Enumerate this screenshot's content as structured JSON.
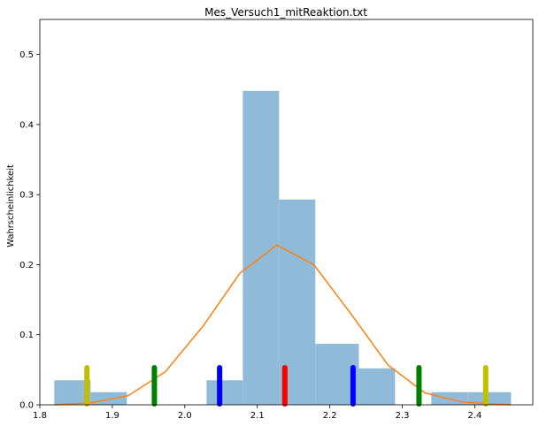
{
  "chart_data": {
    "type": "bar",
    "title": "Mes_Versuch1_mitReaktion.txt",
    "xlabel": "",
    "ylabel": "Wahrscheinlichkeit",
    "xlim": [
      1.8,
      2.48
    ],
    "ylim": [
      0,
      0.55
    ],
    "xticks": [
      1.8,
      1.9,
      2.0,
      2.1,
      2.2,
      2.3,
      2.4
    ],
    "xtick_labels": [
      "1.8",
      "1.9",
      "2.0",
      "2.1",
      "2.2",
      "2.3",
      "2.4"
    ],
    "yticks": [
      0.0,
      0.1,
      0.2,
      0.3,
      0.4,
      0.5
    ],
    "ytick_labels": [
      "0.0",
      "0.1",
      "0.2",
      "0.3",
      "0.4",
      "0.5"
    ],
    "grid": false,
    "histogram": {
      "color": "#8fbbd9",
      "bins": [
        {
          "x0": 1.82,
          "x1": 1.87,
          "value": 0.035
        },
        {
          "x0": 1.87,
          "x1": 1.92,
          "value": 0.018
        },
        {
          "x0": 1.92,
          "x1": 1.98,
          "value": 0.0
        },
        {
          "x0": 1.98,
          "x1": 2.03,
          "value": 0.0
        },
        {
          "x0": 2.03,
          "x1": 2.08,
          "value": 0.035
        },
        {
          "x0": 2.08,
          "x1": 2.13,
          "value": 0.448
        },
        {
          "x0": 2.13,
          "x1": 2.18,
          "value": 0.293
        },
        {
          "x0": 2.18,
          "x1": 2.24,
          "value": 0.087
        },
        {
          "x0": 2.24,
          "x1": 2.29,
          "value": 0.052
        },
        {
          "x0": 2.29,
          "x1": 2.34,
          "value": 0.0
        },
        {
          "x0": 2.34,
          "x1": 2.39,
          "value": 0.018
        },
        {
          "x0": 2.39,
          "x1": 2.45,
          "value": 0.018
        }
      ]
    },
    "series": [
      {
        "type": "line",
        "color": "#ff7f0e",
        "x": [
          1.82,
          1.871,
          1.922,
          1.973,
          2.025,
          2.076,
          2.127,
          2.178,
          2.229,
          2.28,
          2.331,
          2.382,
          2.433,
          2.45
        ],
        "y": [
          0.0,
          0.003,
          0.013,
          0.047,
          0.112,
          0.188,
          0.228,
          0.2,
          0.13,
          0.057,
          0.017,
          0.004,
          0.001,
          0.0
        ]
      }
    ],
    "markers": [
      {
        "x": 1.865,
        "height": 0.053,
        "color": "#bfbf00"
      },
      {
        "x": 1.958,
        "height": 0.053,
        "color": "#008000"
      },
      {
        "x": 2.048,
        "height": 0.053,
        "color": "#0000ff"
      },
      {
        "x": 2.138,
        "height": 0.053,
        "color": "#ff0000"
      },
      {
        "x": 2.232,
        "height": 0.053,
        "color": "#0000ff"
      },
      {
        "x": 2.323,
        "height": 0.053,
        "color": "#008000"
      },
      {
        "x": 2.415,
        "height": 0.053,
        "color": "#bfbf00"
      }
    ]
  }
}
